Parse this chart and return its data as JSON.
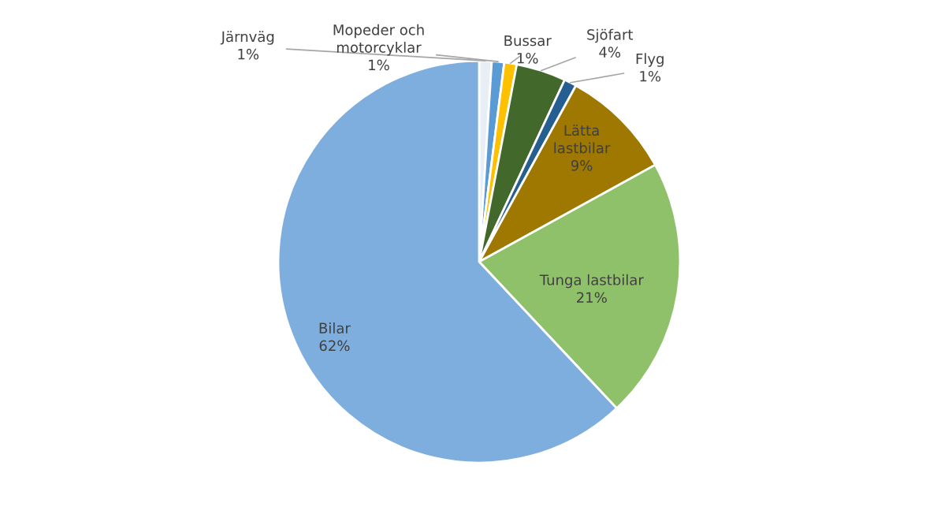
{
  "chart_data": {
    "type": "pie",
    "categories": [
      "Järnväg",
      "Mopeder och motorcyklar",
      "Bussar",
      "Sjöfart",
      "Flyg",
      "Lätta lastbilar",
      "Tunga lastbilar",
      "Bilar"
    ],
    "values": [
      1,
      1,
      1,
      4,
      1,
      9,
      21,
      62
    ],
    "value_labels": [
      "1%",
      "1%",
      "1%",
      "4%",
      "1%",
      "9%",
      "21%",
      "62%"
    ],
    "colors": [
      "#e8eef6",
      "#5b9bd5",
      "#ffc000",
      "#43682b",
      "#255e91",
      "#9e7800",
      "#8fc16a",
      "#7eaedd"
    ],
    "legend": false
  }
}
